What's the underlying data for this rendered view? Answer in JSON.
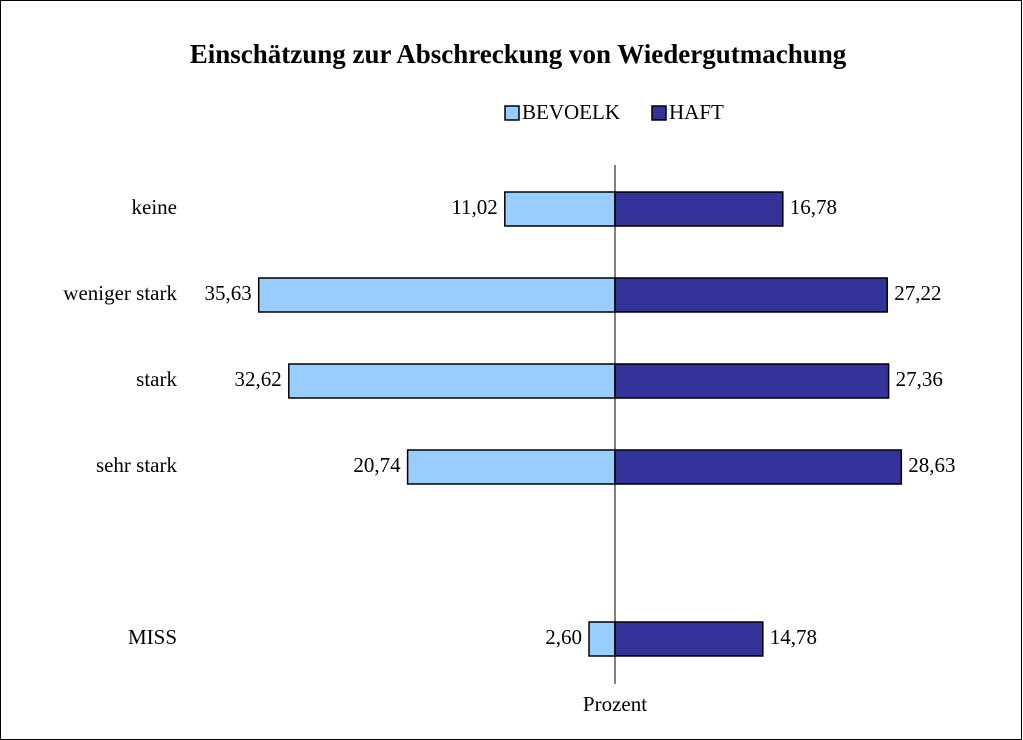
{
  "chart_data": {
    "type": "diverging_bar",
    "title": "Einschätzung zur Abschreckung von Wiedergutmachung",
    "categories": [
      "keine",
      "weniger stark",
      "stark",
      "sehr stark",
      null,
      "MISS"
    ],
    "series": [
      {
        "name": "BEVOELK",
        "color": "#99ccff",
        "values": [
          11.02,
          35.63,
          32.62,
          20.74,
          null,
          2.6
        ],
        "value_labels": [
          "11,02",
          "35,63",
          "32,62",
          "20,74",
          null,
          "2,60"
        ]
      },
      {
        "name": "HAFT",
        "color": "#333399",
        "values": [
          16.78,
          27.22,
          27.36,
          28.63,
          null,
          14.78
        ],
        "value_labels": [
          "16,78",
          "27,22",
          "27,36",
          "28,63",
          null,
          "14,78"
        ]
      }
    ],
    "xlabel": "Prozent",
    "xlim": [
      -40,
      40
    ]
  }
}
